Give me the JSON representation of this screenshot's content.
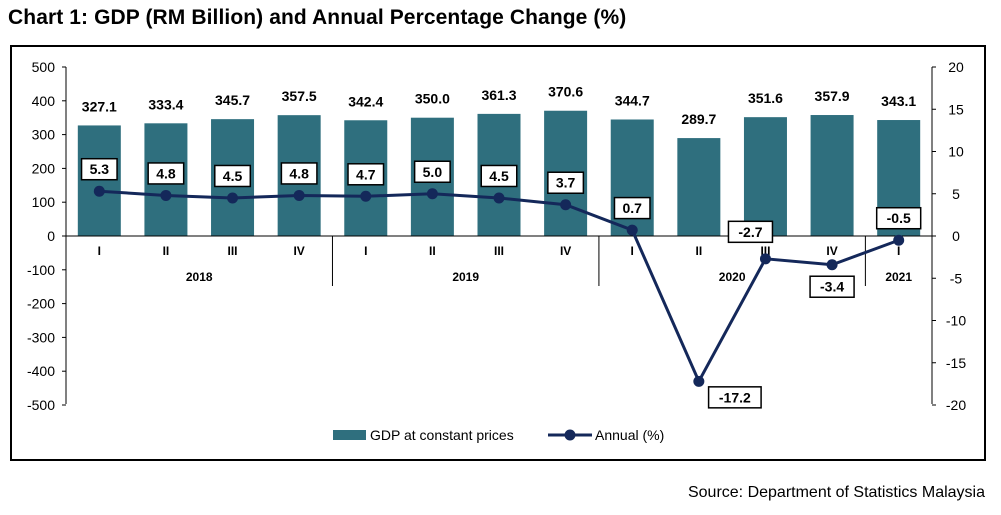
{
  "page": {
    "title": "Chart 1: GDP (RM Billion) and Annual Percentage Change (%)",
    "source": "Source: Department of Statistics Malaysia"
  },
  "chart_data": {
    "type": "bar",
    "title": "Chart 1: GDP (RM Billion) and Annual Percentage Change (%)",
    "categories": [
      "I",
      "II",
      "III",
      "IV",
      "I",
      "II",
      "III",
      "IV",
      "I",
      "II",
      "III",
      "IV",
      "I"
    ],
    "years": [
      {
        "label": "2018",
        "from": 0,
        "to": 3
      },
      {
        "label": "2019",
        "from": 4,
        "to": 7
      },
      {
        "label": "2020",
        "from": 8,
        "to": 11
      },
      {
        "label": "2021",
        "from": 12,
        "to": 12
      }
    ],
    "series": [
      {
        "name": "GDP at constant prices",
        "type": "bar",
        "axis": "left",
        "color": "#2f6f7e",
        "values": [
          327.1,
          333.4,
          345.7,
          357.5,
          342.4,
          350.0,
          361.3,
          370.6,
          344.7,
          289.7,
          351.6,
          357.9,
          343.1
        ],
        "labels": [
          "327.1",
          "333.4",
          "345.7",
          "357.5",
          "342.4",
          "350.0",
          "361.3",
          "370.6",
          "344.7",
          "289.7",
          "351.6",
          "357.9",
          "343.1"
        ]
      },
      {
        "name": "Annual (%)",
        "type": "line",
        "axis": "right",
        "color": "#14285a",
        "values": [
          5.3,
          4.8,
          4.5,
          4.8,
          4.7,
          5.0,
          4.5,
          3.7,
          0.7,
          -17.2,
          -2.7,
          -3.4,
          -0.5
        ],
        "labels": [
          "5.3",
          "4.8",
          "4.5",
          "4.8",
          "4.7",
          "5.0",
          "4.5",
          "3.7",
          "0.7",
          "-17.2",
          "-2.7",
          "-3.4",
          "-0.5"
        ]
      }
    ],
    "y_left": {
      "min": -500,
      "max": 500,
      "step": 100,
      "ticks": [
        "500",
        "400",
        "300",
        "200",
        "100",
        "0",
        "-100",
        "-200",
        "-300",
        "-400",
        "-500"
      ]
    },
    "y_right": {
      "min": -20,
      "max": 20,
      "step": 5,
      "ticks": [
        "20",
        "15",
        "10",
        "5",
        "0",
        "-5",
        "-10",
        "-15",
        "-20"
      ]
    },
    "legend": {
      "position": "bottom",
      "items": [
        {
          "label": "GDP at constant prices",
          "kind": "bar"
        },
        {
          "label": "Annual (%)",
          "kind": "line"
        }
      ]
    },
    "grid": false
  }
}
